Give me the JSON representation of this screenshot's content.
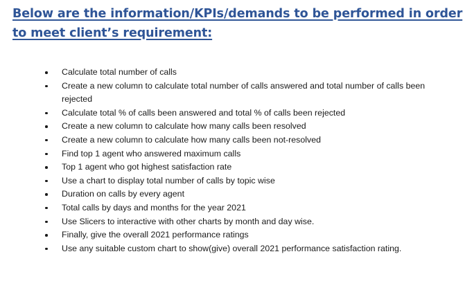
{
  "heading": {
    "line1": "Below are the information/KPIs/demands to be performed in order",
    "line2": "to meet client’s requirement:"
  },
  "items": [
    "Calculate total number of calls",
    "Create a new column to calculate total number of calls answered and total number of calls been rejected",
    "Calculate total % of calls been answered and total % of calls been rejected",
    "Create a new column to calculate how many calls been resolved",
    "Create a new column to calculate how many calls been not-resolved",
    "Find top 1 agent who answered maximum calls",
    "Top 1 agent who got highest satisfaction rate",
    "Use a chart to display total number of calls by topic wise",
    "Duration on calls by every agent",
    "Total calls by days and months for the year 2021",
    "Use Slicers to interactive with other charts by month and day wise.",
    "Finally, give the overall 2021 performance ratings",
    "Use any suitable custom chart to show(give) overall 2021 performance satisfaction rating."
  ],
  "colors": {
    "heading": "#2f5597",
    "text": "#1a1a1a",
    "background": "#ffffff"
  }
}
